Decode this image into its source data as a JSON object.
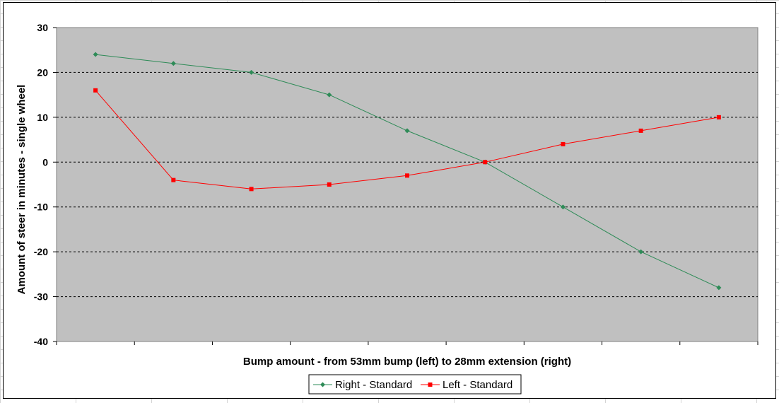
{
  "chart_data": {
    "type": "line",
    "title": "",
    "xlabel": "Bump amount - from 53mm bump (left) to 28mm extension (right)",
    "ylabel": "Amount of steer in minutes - single wheel",
    "ylim": [
      -40,
      30
    ],
    "yticks": [
      30,
      20,
      10,
      0,
      -10,
      -20,
      -30,
      -40
    ],
    "x": [
      1,
      2,
      3,
      4,
      5,
      6,
      7,
      8,
      9
    ],
    "series": [
      {
        "name": "Right - Standard",
        "color": "#2e8b57",
        "marker": "diamond",
        "values": [
          24,
          22,
          20,
          15,
          7,
          0,
          -10,
          -20,
          -28
        ]
      },
      {
        "name": "Left - Standard",
        "color": "#ff0000",
        "marker": "square",
        "values": [
          16,
          -4,
          -6,
          -5,
          -3,
          0,
          4,
          7,
          10
        ]
      }
    ],
    "plot_background": "#c0c0c0",
    "gridlines": "horizontal dashed",
    "legend_position": "bottom-center"
  }
}
